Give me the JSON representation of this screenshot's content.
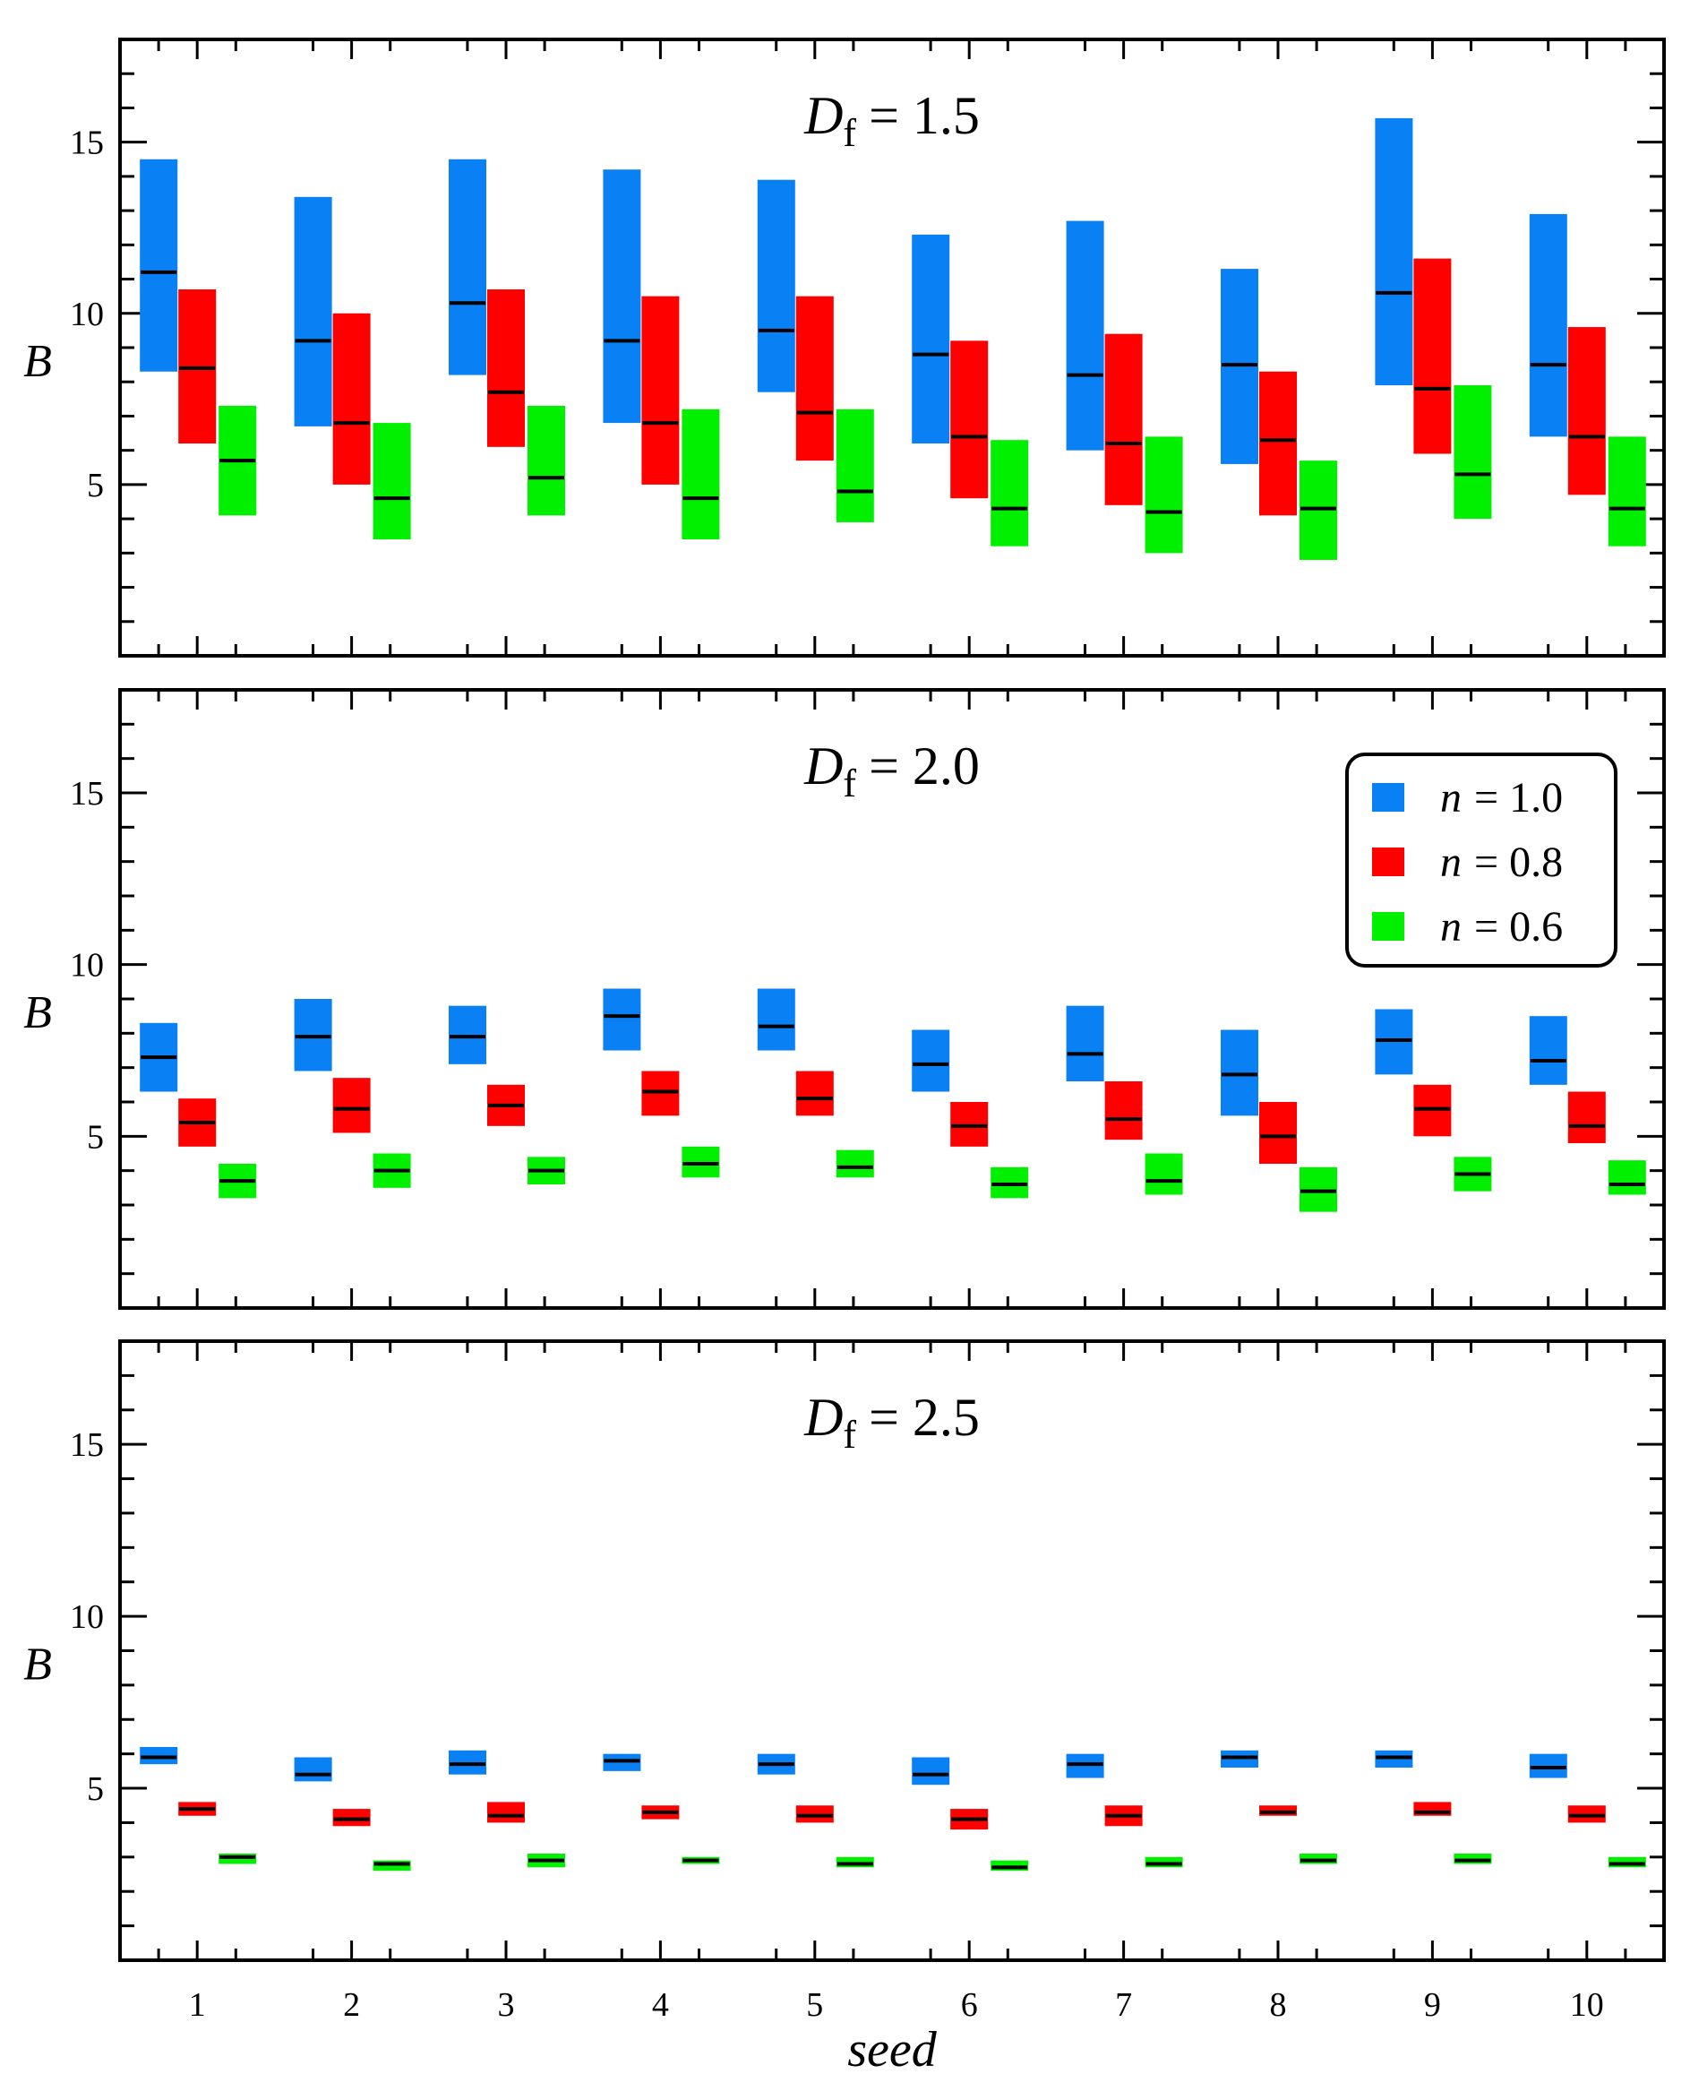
{
  "chart_data": {
    "type": "box",
    "xlabel": "seed",
    "ylabel": "B",
    "ylim": [
      0,
      18
    ],
    "yticks": [
      5,
      10,
      15
    ],
    "categories": [
      "1",
      "2",
      "3",
      "4",
      "5",
      "6",
      "7",
      "8",
      "9",
      "10"
    ],
    "legend": {
      "placement": "upper-right of middle panel",
      "entries": [
        {
          "var": "n",
          "eq": "= 1.0",
          "color": "#0a80f5"
        },
        {
          "var": "n",
          "eq": "= 0.8",
          "color": "#ff0000"
        },
        {
          "var": "n",
          "eq": "= 0.6",
          "color": "#00f000"
        }
      ]
    },
    "panels": [
      {
        "title_var": "D",
        "title_sub": "f",
        "title_eq": "= 1.5",
        "series": [
          {
            "name": "n = 1.0",
            "color": "#0a80f5",
            "low": [
              8.3,
              6.7,
              8.2,
              6.8,
              7.7,
              6.2,
              6.0,
              5.6,
              7.9,
              6.4
            ],
            "high": [
              14.5,
              13.4,
              14.5,
              14.2,
              13.9,
              12.3,
              12.7,
              11.3,
              15.7,
              12.9
            ],
            "median": [
              11.2,
              9.2,
              10.3,
              9.2,
              9.5,
              8.8,
              8.2,
              8.5,
              10.6,
              8.5
            ]
          },
          {
            "name": "n = 0.8",
            "color": "#ff0000",
            "low": [
              6.2,
              5.0,
              6.1,
              5.0,
              5.7,
              4.6,
              4.4,
              4.1,
              5.9,
              4.7
            ],
            "high": [
              10.7,
              10.0,
              10.7,
              10.5,
              10.5,
              9.2,
              9.4,
              8.3,
              11.6,
              9.6
            ],
            "median": [
              8.4,
              6.8,
              7.7,
              6.8,
              7.1,
              6.4,
              6.2,
              6.3,
              7.8,
              6.4
            ]
          },
          {
            "name": "n = 0.6",
            "color": "#00f000",
            "low": [
              4.1,
              3.4,
              4.1,
              3.4,
              3.9,
              3.2,
              3.0,
              2.8,
              4.0,
              3.2
            ],
            "high": [
              7.3,
              6.8,
              7.3,
              7.2,
              7.2,
              6.3,
              6.4,
              5.7,
              7.9,
              6.4
            ],
            "median": [
              5.7,
              4.6,
              5.2,
              4.6,
              4.8,
              4.3,
              4.2,
              4.3,
              5.3,
              4.3
            ]
          }
        ]
      },
      {
        "title_var": "D",
        "title_sub": "f",
        "title_eq": "= 2.0",
        "series": [
          {
            "name": "n = 1.0",
            "color": "#0a80f5",
            "low": [
              6.3,
              6.9,
              7.1,
              7.5,
              7.5,
              6.3,
              6.6,
              5.6,
              6.8,
              6.5
            ],
            "high": [
              8.3,
              9.0,
              8.8,
              9.3,
              9.3,
              8.1,
              8.8,
              8.1,
              8.7,
              8.5
            ],
            "median": [
              7.3,
              7.9,
              7.9,
              8.5,
              8.2,
              7.1,
              7.4,
              6.8,
              7.8,
              7.2
            ]
          },
          {
            "name": "n = 0.8",
            "color": "#ff0000",
            "low": [
              4.7,
              5.1,
              5.3,
              5.6,
              5.6,
              4.7,
              4.9,
              4.2,
              5.0,
              4.8
            ],
            "high": [
              6.1,
              6.7,
              6.5,
              6.9,
              6.9,
              6.0,
              6.6,
              6.0,
              6.5,
              6.3
            ],
            "median": [
              5.4,
              5.8,
              5.9,
              6.3,
              6.1,
              5.3,
              5.5,
              5.0,
              5.8,
              5.3
            ]
          },
          {
            "name": "n = 0.6",
            "color": "#00f000",
            "low": [
              3.2,
              3.5,
              3.6,
              3.8,
              3.8,
              3.2,
              3.3,
              2.8,
              3.4,
              3.3
            ],
            "high": [
              4.2,
              4.5,
              4.4,
              4.7,
              4.6,
              4.1,
              4.5,
              4.1,
              4.4,
              4.3
            ],
            "median": [
              3.7,
              4.0,
              4.0,
              4.2,
              4.1,
              3.6,
              3.7,
              3.4,
              3.9,
              3.6
            ]
          }
        ]
      },
      {
        "title_var": "D",
        "title_sub": "f",
        "title_eq": "= 2.5",
        "series": [
          {
            "name": "n = 1.0",
            "color": "#0a80f5",
            "low": [
              5.7,
              5.2,
              5.4,
              5.5,
              5.4,
              5.1,
              5.3,
              5.6,
              5.6,
              5.3
            ],
            "high": [
              6.2,
              5.9,
              6.1,
              6.0,
              6.0,
              5.9,
              6.0,
              6.1,
              6.1,
              6.0
            ],
            "median": [
              5.9,
              5.4,
              5.7,
              5.8,
              5.7,
              5.4,
              5.7,
              5.9,
              5.9,
              5.6
            ]
          },
          {
            "name": "n = 0.8",
            "color": "#ff0000",
            "low": [
              4.2,
              3.9,
              4.0,
              4.1,
              4.0,
              3.8,
              3.9,
              4.2,
              4.2,
              4.0
            ],
            "high": [
              4.6,
              4.4,
              4.6,
              4.5,
              4.5,
              4.4,
              4.5,
              4.5,
              4.6,
              4.5
            ],
            "median": [
              4.4,
              4.1,
              4.2,
              4.3,
              4.2,
              4.1,
              4.2,
              4.3,
              4.3,
              4.2
            ]
          },
          {
            "name": "n = 0.6",
            "color": "#00f000",
            "low": [
              2.8,
              2.6,
              2.7,
              2.8,
              2.7,
              2.6,
              2.7,
              2.8,
              2.8,
              2.7
            ],
            "high": [
              3.1,
              2.9,
              3.1,
              3.0,
              3.0,
              2.9,
              3.0,
              3.1,
              3.1,
              3.0
            ],
            "median": [
              3.0,
              2.8,
              2.9,
              2.9,
              2.8,
              2.7,
              2.8,
              2.9,
              2.9,
              2.8
            ]
          }
        ]
      }
    ]
  }
}
